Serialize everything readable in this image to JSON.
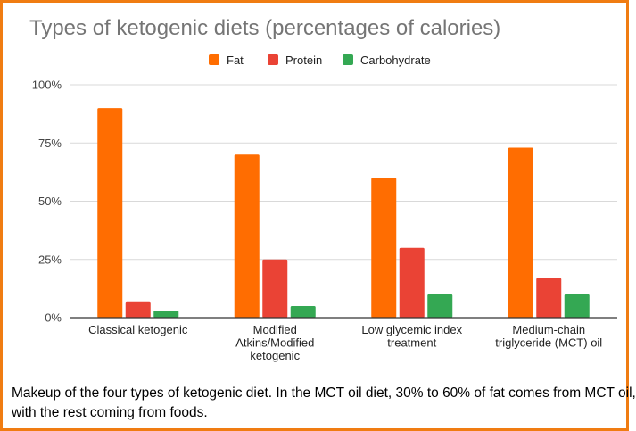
{
  "chart_data": {
    "type": "bar",
    "title": "Types of ketogenic diets (percentages of calories)",
    "categories": [
      [
        "Classical ketogenic"
      ],
      [
        "Modified",
        "Atkins/Modified",
        "ketogenic"
      ],
      [
        "Low glycemic index",
        "treatment"
      ],
      [
        "Medium-chain",
        "triglyceride (MCT) oil"
      ]
    ],
    "series": [
      {
        "name": "Fat",
        "color": "#ff6d01",
        "values": [
          90,
          70,
          60,
          73
        ]
      },
      {
        "name": "Protein",
        "color": "#ea4335",
        "values": [
          7,
          25,
          30,
          17
        ]
      },
      {
        "name": "Carbohydrate",
        "color": "#34a853",
        "values": [
          3,
          5,
          10,
          10
        ]
      }
    ],
    "ylim": [
      0,
      100
    ],
    "yticks": [
      "0%",
      "25%",
      "50%",
      "75%",
      "100%"
    ],
    "legend_position": "top-center",
    "grid": true
  },
  "caption": {
    "line1": "Makeup of the four types of ketogenic diet. In the MCT oil diet, 30% to 60% of fat comes from MCT oil,",
    "line2": "with the rest coming from foods."
  },
  "colors": {
    "frame": "#f07c12",
    "grid": "#d9d9d9",
    "baseline": "#333333"
  }
}
